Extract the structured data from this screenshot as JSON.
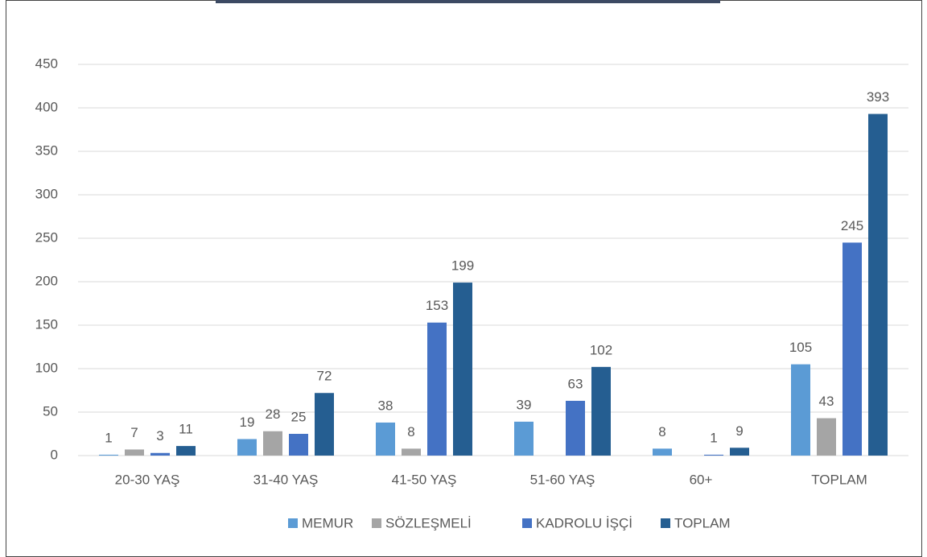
{
  "chart_data": {
    "type": "bar",
    "categories": [
      "20-30 YAŞ",
      "31-40 YAŞ",
      "41-50 YAŞ",
      "51-60 YAŞ",
      "60+",
      "TOPLAM"
    ],
    "series": [
      {
        "name": "MEMUR",
        "color": "#5b9bd5",
        "values": [
          1,
          19,
          38,
          39,
          8,
          105
        ]
      },
      {
        "name": "SÖZLEŞMELİ",
        "color": "#a5a5a5",
        "values": [
          7,
          28,
          8,
          null,
          null,
          43
        ]
      },
      {
        "name": "KADROLU İŞÇİ",
        "color": "#4472c4",
        "values": [
          3,
          25,
          153,
          63,
          1,
          245
        ]
      },
      {
        "name": "TOPLAM",
        "color": "#255e91",
        "values": [
          11,
          72,
          199,
          102,
          9,
          393
        ]
      }
    ],
    "ylim": [
      0,
      450
    ],
    "yticks": [
      0,
      50,
      100,
      150,
      200,
      250,
      300,
      350,
      400,
      450
    ],
    "grid": true,
    "legend": "bottom"
  }
}
